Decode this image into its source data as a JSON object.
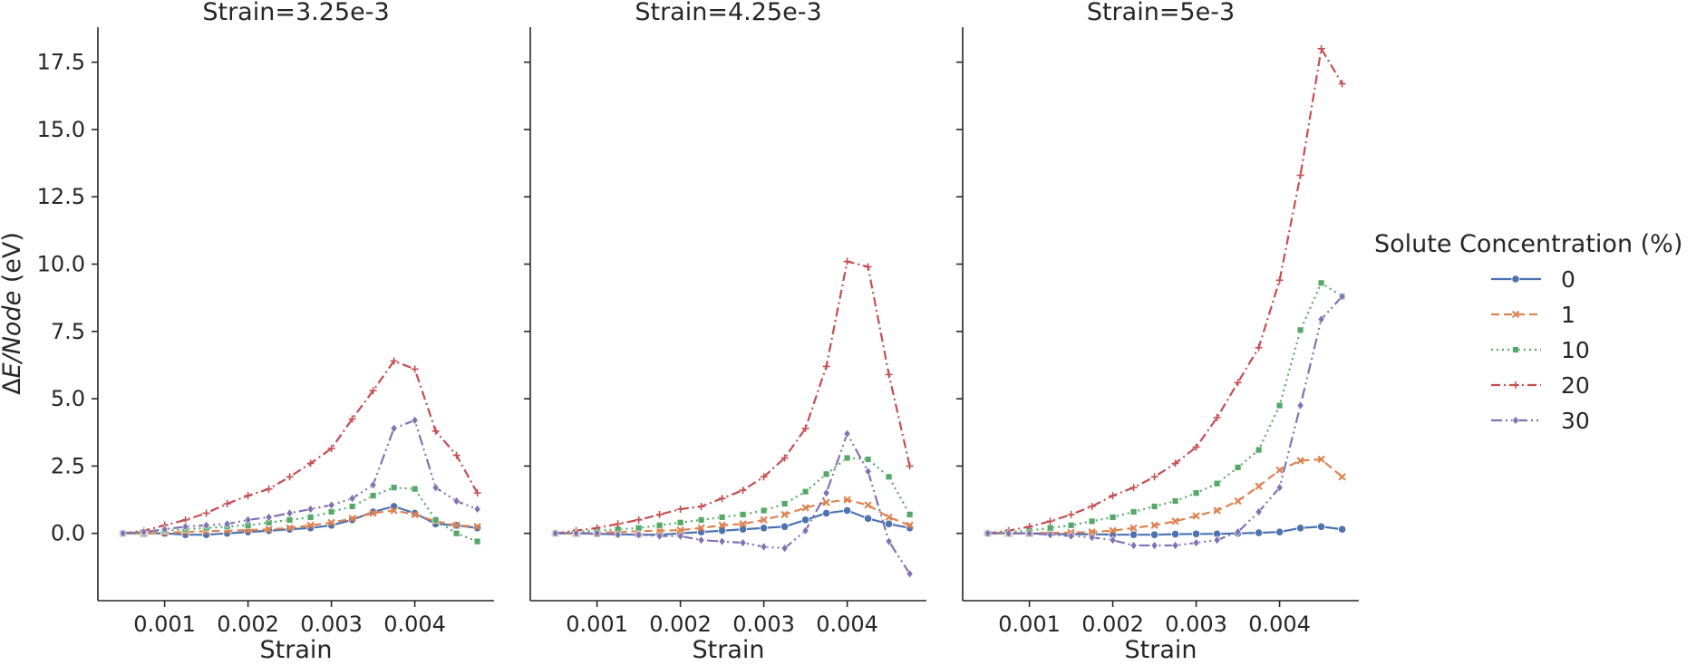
{
  "chart_data": {
    "type": "line",
    "ylabel_prefix": "Δ",
    "ylabel_italic": "E/Node",
    "ylabel_suffix": " (eV)",
    "xlabel": "Strain",
    "x_ticks": [
      0.001,
      0.002,
      0.003,
      0.004
    ],
    "x_tick_labels": [
      "0.001",
      "0.002",
      "0.003",
      "0.004"
    ],
    "xlim": [
      0.0002,
      0.00495
    ],
    "y_ticks": [
      0,
      2.5,
      5,
      7.5,
      10,
      12.5,
      15,
      17.5
    ],
    "y_tick_labels": [
      "0.0",
      "2.5",
      "5.0",
      "7.5",
      "10.0",
      "12.5",
      "15.0",
      "17.5"
    ],
    "ylim": [
      -2.5,
      18.8
    ],
    "grid": false,
    "legend": {
      "title": "Solute Concentration (%)",
      "placement": "right",
      "entries": [
        {
          "label": "0",
          "color": "#4c72b0",
          "dash": "",
          "marker": "circle"
        },
        {
          "label": "1",
          "color": "#dd8452",
          "dash": "9,5",
          "marker": "x"
        },
        {
          "label": "10",
          "color": "#55a868",
          "dash": "2,4",
          "marker": "square"
        },
        {
          "label": "20",
          "color": "#c44e52",
          "dash": "10,4,2,4",
          "marker": "plus"
        },
        {
          "label": "30",
          "color": "#8172b3",
          "dash": "12,4,2,4,2,4",
          "marker": "diamond"
        }
      ]
    },
    "x": [
      0.0005,
      0.00075,
      0.001,
      0.00125,
      0.0015,
      0.00175,
      0.002,
      0.00225,
      0.0025,
      0.00275,
      0.003,
      0.00325,
      0.0035,
      0.00375,
      0.004,
      0.00425,
      0.0045,
      0.00475
    ],
    "panels": [
      {
        "title": "Strain=3.25e-3",
        "series": [
          {
            "name": "0",
            "values": [
              0,
              0,
              0,
              -0.05,
              -0.05,
              0,
              0.05,
              0.1,
              0.15,
              0.2,
              0.3,
              0.5,
              0.8,
              1.0,
              0.75,
              0.35,
              0.3,
              0.2
            ]
          },
          {
            "name": "1",
            "values": [
              0,
              0,
              0.02,
              0.05,
              0.08,
              0.1,
              0.12,
              0.15,
              0.2,
              0.3,
              0.4,
              0.55,
              0.75,
              0.85,
              0.7,
              0.45,
              0.3,
              0.25
            ]
          },
          {
            "name": "10",
            "values": [
              0,
              0.05,
              0.1,
              0.15,
              0.2,
              0.25,
              0.3,
              0.4,
              0.5,
              0.6,
              0.8,
              1.0,
              1.4,
              1.7,
              1.65,
              0.5,
              0.0,
              -0.3
            ]
          },
          {
            "name": "20",
            "values": [
              0,
              0.1,
              0.3,
              0.5,
              0.75,
              1.1,
              1.4,
              1.65,
              2.1,
              2.6,
              3.15,
              4.25,
              5.3,
              6.4,
              6.1,
              3.8,
              2.9,
              1.5
            ]
          },
          {
            "name": "30",
            "values": [
              0,
              0.05,
              0.15,
              0.25,
              0.3,
              0.35,
              0.5,
              0.6,
              0.75,
              0.9,
              1.05,
              1.3,
              1.8,
              3.9,
              4.2,
              1.7,
              1.2,
              0.9
            ]
          }
        ]
      },
      {
        "title": "Strain=4.25e-3",
        "series": [
          {
            "name": "0",
            "values": [
              0,
              0,
              -0.02,
              -0.03,
              -0.05,
              -0.05,
              0,
              0.05,
              0.1,
              0.15,
              0.2,
              0.25,
              0.5,
              0.75,
              0.85,
              0.55,
              0.35,
              0.2
            ]
          },
          {
            "name": "1",
            "values": [
              0,
              0,
              0.02,
              0.05,
              0.08,
              0.1,
              0.12,
              0.2,
              0.3,
              0.35,
              0.5,
              0.7,
              0.95,
              1.15,
              1.25,
              1.05,
              0.6,
              0.3
            ]
          },
          {
            "name": "10",
            "values": [
              0,
              0.05,
              0.1,
              0.15,
              0.2,
              0.3,
              0.4,
              0.5,
              0.6,
              0.7,
              0.85,
              1.1,
              1.55,
              2.2,
              2.8,
              2.75,
              2.1,
              0.7
            ]
          },
          {
            "name": "20",
            "values": [
              0,
              0.1,
              0.2,
              0.35,
              0.5,
              0.7,
              0.9,
              1.0,
              1.3,
              1.6,
              2.1,
              2.8,
              3.9,
              6.2,
              10.1,
              9.9,
              5.9,
              2.5
            ]
          },
          {
            "name": "30",
            "values": [
              0,
              0,
              0,
              -0.05,
              -0.05,
              -0.1,
              -0.1,
              -0.25,
              -0.3,
              -0.35,
              -0.5,
              -0.55,
              0.1,
              1.5,
              3.7,
              2.3,
              -0.3,
              -1.5
            ]
          }
        ]
      },
      {
        "title": "Strain=5e-3",
        "series": [
          {
            "name": "0",
            "values": [
              0,
              0,
              0,
              -0.02,
              -0.03,
              -0.03,
              -0.05,
              -0.05,
              -0.05,
              -0.03,
              -0.02,
              -0.02,
              0,
              0.02,
              0.05,
              0.2,
              0.25,
              0.15
            ]
          },
          {
            "name": "1",
            "values": [
              0,
              0,
              0,
              0.02,
              0.03,
              0.05,
              0.1,
              0.2,
              0.3,
              0.45,
              0.65,
              0.85,
              1.2,
              1.75,
              2.35,
              2.7,
              2.75,
              2.1
            ]
          },
          {
            "name": "10",
            "values": [
              0,
              0.05,
              0.1,
              0.2,
              0.3,
              0.45,
              0.6,
              0.8,
              1.0,
              1.2,
              1.5,
              1.85,
              2.45,
              3.1,
              4.75,
              7.55,
              9.3,
              8.8
            ]
          },
          {
            "name": "20",
            "values": [
              0,
              0.1,
              0.25,
              0.45,
              0.7,
              1.0,
              1.4,
              1.7,
              2.1,
              2.6,
              3.2,
              4.3,
              5.6,
              6.9,
              9.4,
              13.3,
              18.0,
              16.7
            ]
          },
          {
            "name": "30",
            "values": [
              0,
              0,
              0,
              -0.05,
              -0.1,
              -0.15,
              -0.25,
              -0.45,
              -0.45,
              -0.45,
              -0.35,
              -0.25,
              0.05,
              0.8,
              1.7,
              4.75,
              7.95,
              8.8
            ]
          }
        ]
      }
    ]
  }
}
